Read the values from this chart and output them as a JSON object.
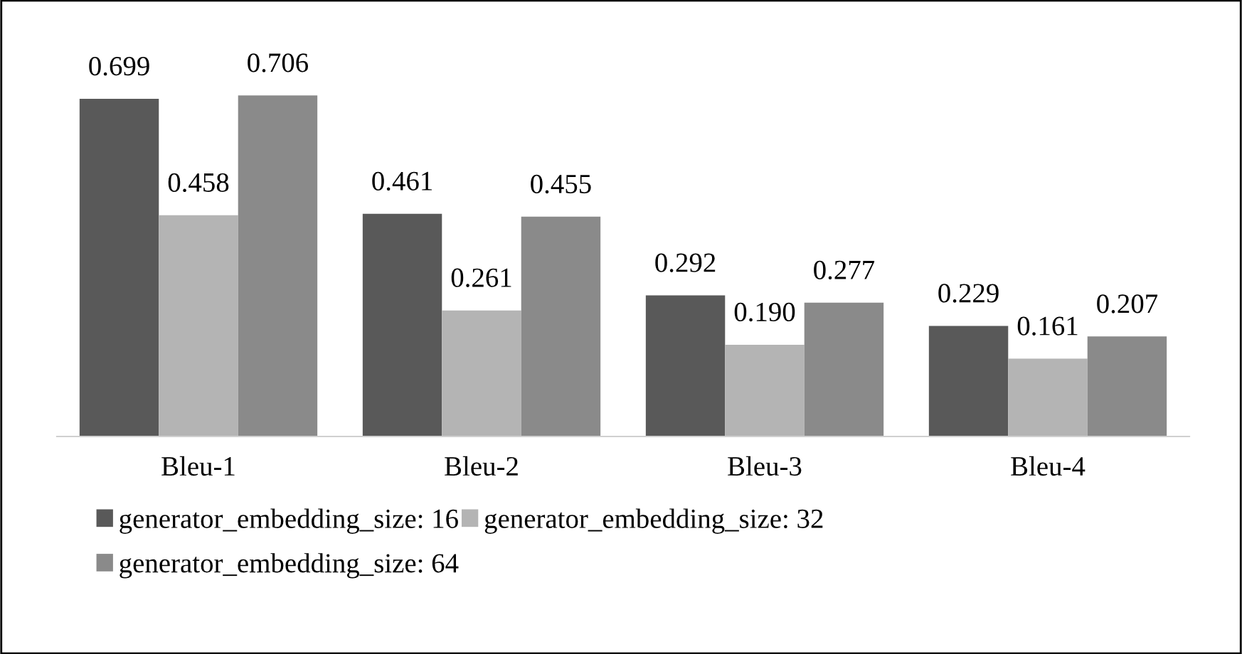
{
  "chart_data": {
    "type": "bar",
    "categories": [
      "Bleu-1",
      "Bleu-2",
      "Bleu-3",
      "Bleu-4"
    ],
    "series": [
      {
        "name": "generator_embedding_size: 16",
        "color": "#595959",
        "values": [
          0.699,
          0.461,
          0.292,
          0.229
        ],
        "value_labels": [
          "0.699",
          "0.461",
          "0.292",
          "0.229"
        ]
      },
      {
        "name": "generator_embedding_size: 32",
        "color": "#b4b4b4",
        "values": [
          0.458,
          0.261,
          0.19,
          0.161
        ],
        "value_labels": [
          "0.458",
          "0.261",
          "0.190",
          "0.161"
        ]
      },
      {
        "name": "generator_embedding_size: 64",
        "color": "#8a8a8a",
        "values": [
          0.706,
          0.455,
          0.277,
          0.207
        ],
        "value_labels": [
          "0.706",
          "0.455",
          "0.277",
          "0.207"
        ]
      }
    ],
    "legend": "bottom",
    "grid": false
  }
}
